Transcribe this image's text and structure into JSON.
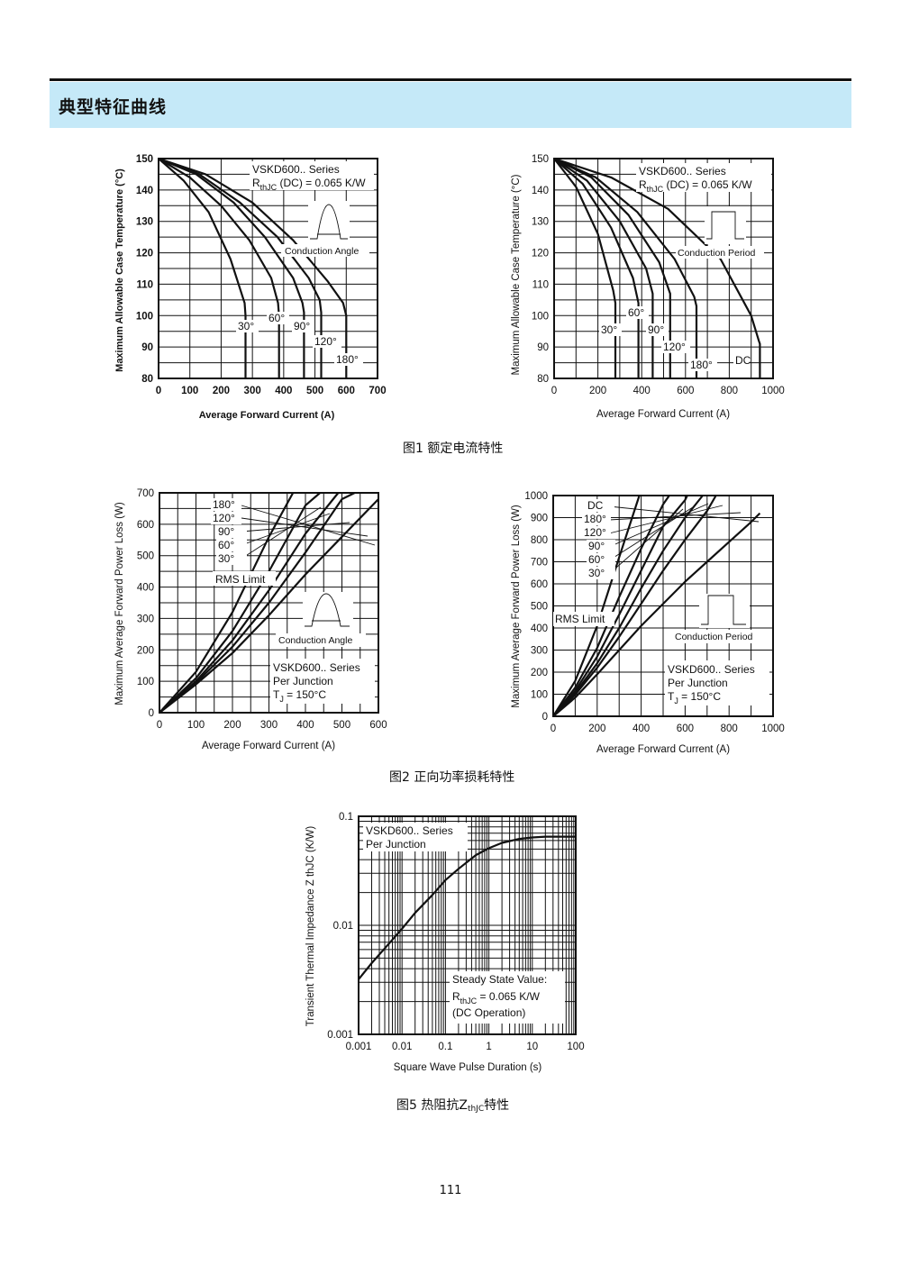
{
  "header": {
    "title": "典型特征曲线"
  },
  "captions": {
    "fig1": "图1  额定电流特性",
    "fig2": "图2  正向功率损耗特性",
    "fig5_prefix": "图5  热阻抗Z",
    "fig5_sub": "thJC",
    "fig5_suffix": "特性"
  },
  "page_number": "111",
  "chart_data": [
    {
      "type": "line",
      "xlabel": "Average Forward Current (A)",
      "ylabel": "Maximum Allowable Case Temperature (°C)",
      "xlim": [
        0,
        700
      ],
      "ylim": [
        80,
        150
      ],
      "xticks": [
        "0",
        "100",
        "200",
        "300",
        "400",
        "500",
        "600",
        "700"
      ],
      "yticks": [
        "80",
        "90",
        "100",
        "110",
        "120",
        "130",
        "140",
        "150"
      ],
      "grid": true,
      "annotations": {
        "series": "VSKD600.. Series",
        "rth_R": "R",
        "rth_sub": "thJC",
        "rth_rest": " (DC) = 0.065 K/W",
        "angle": "Conduction Angle"
      },
      "series": [
        {
          "name": "30°",
          "x": [
            0,
            80,
            160,
            230,
            275,
            278,
            278
          ],
          "y": [
            150,
            143,
            133,
            118,
            104,
            100,
            80
          ]
        },
        {
          "name": "60°",
          "x": [
            0,
            100,
            200,
            290,
            360,
            382,
            385,
            385
          ],
          "y": [
            150,
            144,
            135,
            124,
            112,
            104,
            100,
            80
          ]
        },
        {
          "name": "90°",
          "x": [
            0,
            120,
            240,
            340,
            430,
            460,
            465,
            465
          ],
          "y": [
            150,
            145,
            136,
            125,
            112,
            104,
            101,
            80
          ]
        },
        {
          "name": "120°",
          "x": [
            0,
            130,
            260,
            380,
            480,
            515,
            520,
            520
          ],
          "y": [
            150,
            145,
            136,
            125,
            112,
            105,
            101,
            80
          ]
        },
        {
          "name": "180°",
          "x": [
            0,
            150,
            300,
            430,
            540,
            590,
            600,
            600
          ],
          "y": [
            150,
            145,
            136,
            124,
            111,
            104,
            100,
            80
          ]
        }
      ]
    },
    {
      "type": "line",
      "xlabel": "Average Forward Current (A)",
      "ylabel": "Maximum Allowable Case Temperature (°C)",
      "xlim": [
        0,
        1000
      ],
      "ylim": [
        80,
        150
      ],
      "xticks": [
        "0",
        "200",
        "400",
        "600",
        "800",
        "1000"
      ],
      "yticks": [
        "80",
        "90",
        "100",
        "110",
        "120",
        "130",
        "140",
        "150"
      ],
      "grid": true,
      "annotations": {
        "series": "VSKD600.. Series",
        "rth_R": "R",
        "rth_sub": "thJC",
        "rth_rest": " (DC) = 0.065 K/W",
        "period": "Conduction Period"
      },
      "series": [
        {
          "name": "30°",
          "x": [
            0,
            100,
            200,
            270,
            280,
            280
          ],
          "y": [
            150,
            141,
            126,
            108,
            104,
            80
          ]
        },
        {
          "name": "60°",
          "x": [
            0,
            130,
            260,
            360,
            385,
            385
          ],
          "y": [
            150,
            142,
            128,
            112,
            104,
            80
          ]
        },
        {
          "name": "90°",
          "x": [
            0,
            150,
            300,
            420,
            450,
            450
          ],
          "y": [
            150,
            143,
            130,
            115,
            107,
            80
          ]
        },
        {
          "name": "120°",
          "x": [
            0,
            170,
            340,
            480,
            530,
            530
          ],
          "y": [
            150,
            144,
            132,
            117,
            107,
            80
          ]
        },
        {
          "name": "180°",
          "x": [
            0,
            190,
            380,
            550,
            640,
            650,
            650
          ],
          "y": [
            150,
            144,
            133,
            118,
            106,
            103,
            80
          ]
        },
        {
          "name": "DC",
          "x": [
            0,
            260,
            520,
            760,
            900,
            935,
            940,
            940
          ],
          "y": [
            150,
            144,
            134,
            118,
            100,
            92,
            91,
            80
          ]
        }
      ]
    },
    {
      "type": "line",
      "xlabel": "Average Forward Current (A)",
      "ylabel": "Maximum Average Forward Power Loss (W)",
      "xlim": [
        0,
        600
      ],
      "ylim": [
        0,
        700
      ],
      "xticks": [
        "0",
        "100",
        "200",
        "300",
        "400",
        "500",
        "600"
      ],
      "yticks": [
        "0",
        "100",
        "200",
        "300",
        "400",
        "500",
        "600",
        "700"
      ],
      "grid": true,
      "annotations": {
        "rms": "RMS Limit",
        "angle": "Conduction Angle",
        "series": "VSKD600.. Series",
        "junction": "Per Junction",
        "tj": "T",
        "tj_sub": "J",
        "tj_rest": " = 150°C"
      },
      "series": [
        {
          "name": "30°",
          "x": [
            0,
            100,
            200,
            300,
            366
          ],
          "y": [
            0,
            130,
            320,
            560,
            700
          ]
        },
        {
          "name": "60°",
          "x": [
            0,
            100,
            200,
            300,
            400,
            440
          ],
          "y": [
            0,
            110,
            260,
            450,
            660,
            700
          ]
        },
        {
          "name": "90°",
          "x": [
            0,
            100,
            200,
            300,
            400,
            490
          ],
          "y": [
            0,
            100,
            230,
            390,
            570,
            700
          ]
        },
        {
          "name": "120°",
          "x": [
            0,
            100,
            200,
            300,
            400,
            500,
            535
          ],
          "y": [
            0,
            95,
            210,
            350,
            510,
            680,
            700
          ]
        },
        {
          "name": "180°",
          "x": [
            0,
            100,
            200,
            300,
            400,
            500,
            600
          ],
          "y": [
            0,
            90,
            190,
            310,
            440,
            560,
            680
          ]
        }
      ]
    },
    {
      "type": "line",
      "xlabel": "Average Forward Current (A)",
      "ylabel": "Maximum Average Forward Power Loss (W)",
      "xlim": [
        0,
        1000
      ],
      "ylim": [
        0,
        1000
      ],
      "xticks": [
        "0",
        "200",
        "400",
        "600",
        "800",
        "1000"
      ],
      "yticks": [
        "0",
        "100",
        "200",
        "300",
        "400",
        "500",
        "600",
        "700",
        "800",
        "900",
        "1000"
      ],
      "grid": true,
      "annotations": {
        "rms": "RMS Limit",
        "period": "Conduction Period",
        "series": "VSKD600.. Series",
        "junction": "Per Junction",
        "tj": "T",
        "tj_sub": "J",
        "tj_rest": " = 150°C"
      },
      "series": [
        {
          "name": "30°",
          "x": [
            0,
            100,
            200,
            300,
            392
          ],
          "y": [
            0,
            160,
            410,
            720,
            1000
          ]
        },
        {
          "name": "60°",
          "x": [
            0,
            100,
            200,
            300,
            400,
            500,
            528
          ],
          "y": [
            0,
            130,
            310,
            540,
            760,
            960,
            1000
          ]
        },
        {
          "name": "90°",
          "x": [
            0,
            100,
            200,
            300,
            400,
            500,
            600,
            610
          ],
          "y": [
            0,
            115,
            270,
            460,
            660,
            860,
            980,
            1000
          ]
        },
        {
          "name": "120°",
          "x": [
            0,
            100,
            200,
            300,
            400,
            500,
            600,
            680
          ],
          "y": [
            0,
            105,
            240,
            400,
            580,
            750,
            900,
            1000
          ]
        },
        {
          "name": "180°",
          "x": [
            0,
            100,
            200,
            300,
            400,
            500,
            600,
            700,
            740
          ],
          "y": [
            0,
            98,
            220,
            360,
            510,
            660,
            800,
            930,
            1000
          ]
        },
        {
          "name": "DC",
          "x": [
            0,
            100,
            200,
            300,
            400,
            500,
            600,
            700,
            800,
            900,
            940
          ],
          "y": [
            0,
            85,
            190,
            300,
            410,
            510,
            610,
            700,
            790,
            880,
            920
          ]
        }
      ]
    },
    {
      "type": "line",
      "xlabel": "Square Wave Pulse Duration (s)",
      "ylabel": "Transient Thermal Impedance Z thJC (K/W)",
      "xscale": "log",
      "yscale": "log",
      "xlim": [
        0.001,
        100
      ],
      "ylim": [
        0.001,
        0.1
      ],
      "xticks": [
        "0.001",
        "0.01",
        "0.1",
        "1",
        "10",
        "100"
      ],
      "yticks": [
        "0.001",
        "0.01",
        "0.1"
      ],
      "grid": true,
      "annotations": {
        "series": "VSKD600.. Series",
        "junction": "Per Junction",
        "ssv": "Steady State Value:",
        "rth_R": "R",
        "rth_sub": "thJC",
        "rth_rest": " = 0.065 K/W",
        "dc": "(DC Operation)"
      },
      "series": [
        {
          "name": "ZthJC",
          "x": [
            0.001,
            0.002,
            0.005,
            0.01,
            0.02,
            0.05,
            0.1,
            0.2,
            0.5,
            1,
            2,
            5,
            10,
            20,
            50,
            100
          ],
          "y": [
            0.0032,
            0.0045,
            0.0068,
            0.0093,
            0.013,
            0.019,
            0.026,
            0.033,
            0.044,
            0.051,
            0.057,
            0.062,
            0.064,
            0.065,
            0.065,
            0.065
          ]
        }
      ]
    }
  ]
}
